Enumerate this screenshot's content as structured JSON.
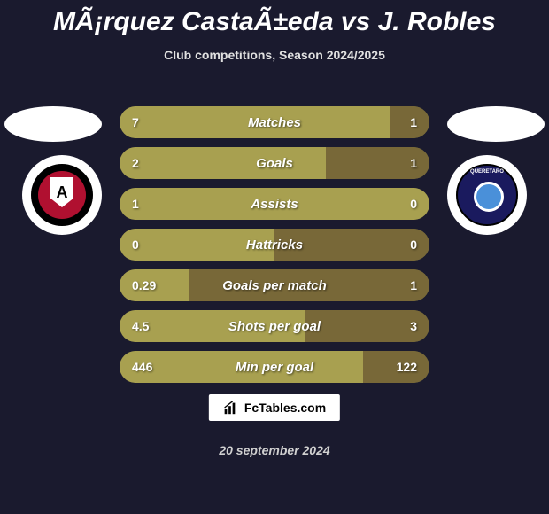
{
  "title": "MÃ¡rquez CastaÃ±eda vs J. Robles",
  "subtitle": "Club competitions, Season 2024/2025",
  "date": "20 september 2024",
  "branding": "FcTables.com",
  "colors": {
    "background": "#1a1a2e",
    "bar_base": "#8a8140",
    "bar_left_fill": "#a8a050",
    "bar_right_fill": "#786838",
    "text_white": "#ffffff"
  },
  "player_left": {
    "club": "Atlas",
    "badge_letter": "A"
  },
  "player_right": {
    "club": "Querétaro"
  },
  "stats": [
    {
      "label": "Matches",
      "left_value": "7",
      "right_value": "1",
      "left_pct": 87.5,
      "right_pct": 12.5
    },
    {
      "label": "Goals",
      "left_value": "2",
      "right_value": "1",
      "left_pct": 66.7,
      "right_pct": 33.3
    },
    {
      "label": "Assists",
      "left_value": "1",
      "right_value": "0",
      "left_pct": 100,
      "right_pct": 0
    },
    {
      "label": "Hattricks",
      "left_value": "0",
      "right_value": "0",
      "left_pct": 50,
      "right_pct": 50
    },
    {
      "label": "Goals per match",
      "left_value": "0.29",
      "right_value": "1",
      "left_pct": 22.5,
      "right_pct": 77.5
    },
    {
      "label": "Shots per goal",
      "left_value": "4.5",
      "right_value": "3",
      "left_pct": 60,
      "right_pct": 40
    },
    {
      "label": "Min per goal",
      "left_value": "446",
      "right_value": "122",
      "left_pct": 78.5,
      "right_pct": 21.5
    }
  ]
}
